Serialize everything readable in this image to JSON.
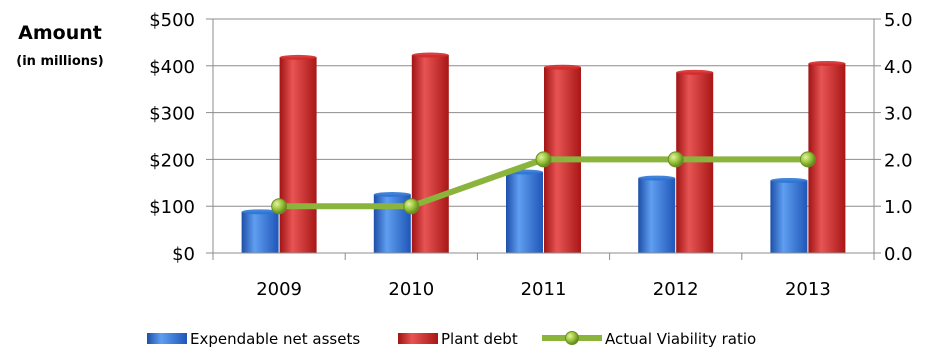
{
  "chart_data": {
    "type": "bar",
    "title": "",
    "ylabel": "Amount",
    "ylabel_sub": "(in millions)",
    "categories": [
      "2009",
      "2010",
      "2011",
      "2012",
      "2013"
    ],
    "ylim": [
      0,
      500
    ],
    "y_ticks": [
      "$0",
      "$100",
      "$200",
      "$300",
      "$400",
      "$500"
    ],
    "y2lim": [
      0,
      5
    ],
    "y2_ticks": [
      "0.0",
      "1.0",
      "2.0",
      "3.0",
      "4.0",
      "5.0"
    ],
    "grid": true,
    "legend_position": "bottom",
    "series": [
      {
        "name": "Expendable net assets",
        "type": "bar",
        "axis": "left",
        "values": [
          88,
          125,
          173,
          160,
          155
        ],
        "color": "#2e75d4"
      },
      {
        "name": "Plant debt",
        "type": "bar",
        "axis": "left",
        "values": [
          418,
          423,
          397,
          386,
          405
        ],
        "color": "#d42a2a"
      },
      {
        "name": "Actual Viability ratio",
        "type": "line",
        "axis": "right",
        "values": [
          1.0,
          1.0,
          2.0,
          2.0,
          2.0
        ],
        "color": "#8bb43c",
        "marker_color": "#9cc63a"
      }
    ]
  }
}
